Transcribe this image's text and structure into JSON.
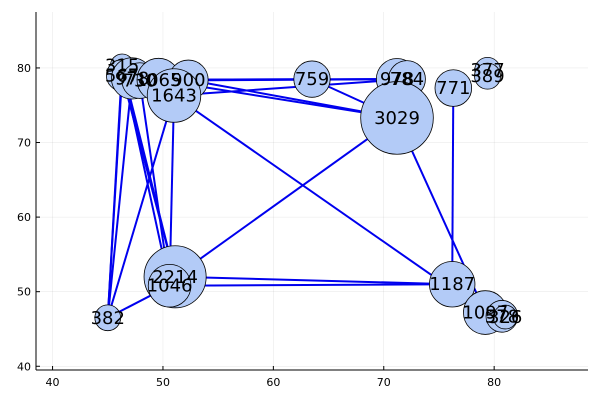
{
  "chart_data": {
    "type": "scatter",
    "title": "",
    "xlabel": "",
    "ylabel": "",
    "xlim": [
      38.5,
      88.5
    ],
    "ylim": [
      39.5,
      87.5
    ],
    "xticks": [
      40,
      50,
      60,
      70,
      80
    ],
    "yticks": [
      40,
      50,
      60,
      70,
      80
    ],
    "grid": true,
    "node_color": "#b3cbf7",
    "edge_color": "#0000ee",
    "nodes": [
      {
        "label": "315",
        "x": 46.3,
        "y": 80.3,
        "weight": 315
      },
      {
        "label": "567",
        "x": 46.3,
        "y": 79.0,
        "weight": 567
      },
      {
        "label": "978",
        "x": 47.2,
        "y": 78.6,
        "weight": 978
      },
      {
        "label": "730",
        "x": 47.9,
        "y": 78.3,
        "weight": 730
      },
      {
        "label": "1065",
        "x": 49.6,
        "y": 78.4,
        "weight": 1065
      },
      {
        "label": "900",
        "x": 52.3,
        "y": 78.4,
        "weight": 900
      },
      {
        "label": "1643",
        "x": 51.0,
        "y": 76.3,
        "weight": 1643
      },
      {
        "label": "759",
        "x": 63.5,
        "y": 78.5,
        "weight": 759
      },
      {
        "label": "978",
        "x": 71.2,
        "y": 78.5,
        "weight": 978
      },
      {
        "label": "784",
        "x": 72.1,
        "y": 78.5,
        "weight": 784
      },
      {
        "label": "771",
        "x": 76.3,
        "y": 77.3,
        "weight": 771
      },
      {
        "label": "377",
        "x": 79.4,
        "y": 79.7,
        "weight": 377
      },
      {
        "label": "389",
        "x": 79.4,
        "y": 78.9,
        "weight": 389
      },
      {
        "label": "3029",
        "x": 71.2,
        "y": 73.3,
        "weight": 3029
      },
      {
        "label": "2214",
        "x": 51.1,
        "y": 52.0,
        "weight": 2214
      },
      {
        "label": "1046",
        "x": 50.6,
        "y": 50.8,
        "weight": 1046
      },
      {
        "label": "1187",
        "x": 76.2,
        "y": 51.0,
        "weight": 1187
      },
      {
        "label": "1097",
        "x": 79.2,
        "y": 47.2,
        "weight": 1097
      },
      {
        "label": "578",
        "x": 80.7,
        "y": 46.7,
        "weight": 578
      },
      {
        "label": "326",
        "x": 81.0,
        "y": 46.6,
        "weight": 326
      },
      {
        "label": "382",
        "x": 45.0,
        "y": 46.5,
        "weight": 382
      }
    ],
    "edges": [
      [
        1,
        20
      ],
      [
        2,
        20
      ],
      [
        0,
        14
      ],
      [
        0,
        15
      ],
      [
        1,
        14
      ],
      [
        3,
        15
      ],
      [
        3,
        8
      ],
      [
        4,
        9
      ],
      [
        4,
        13
      ],
      [
        5,
        8
      ],
      [
        5,
        13
      ],
      [
        6,
        9
      ],
      [
        6,
        15
      ],
      [
        6,
        17
      ],
      [
        6,
        20
      ],
      [
        7,
        13
      ],
      [
        4,
        7
      ],
      [
        14,
        13
      ],
      [
        14,
        16
      ],
      [
        15,
        16
      ],
      [
        13,
        17
      ],
      [
        10,
        16
      ],
      [
        16,
        18
      ],
      [
        15,
        20
      ],
      [
        0,
        20
      ]
    ]
  }
}
